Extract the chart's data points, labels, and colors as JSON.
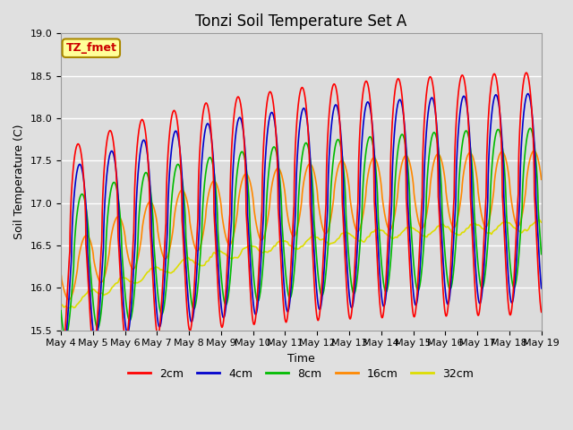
{
  "title": "Tonzi Soil Temperature Set A",
  "xlabel": "Time",
  "ylabel": "Soil Temperature (C)",
  "annotation": "TZ_fmet",
  "ylim": [
    15.5,
    19.0
  ],
  "yticks": [
    15.5,
    16.0,
    16.5,
    17.0,
    17.5,
    18.0,
    18.5,
    19.0
  ],
  "xtick_labels": [
    "May 4",
    "May 5",
    "May 6",
    "May 7",
    "May 8",
    "May 9",
    "May 10",
    "May 11",
    "May 12",
    "May 13",
    "May 14",
    "May 15",
    "May 16",
    "May 17",
    "May 18",
    "May 19"
  ],
  "line_colors": {
    "2cm": "#ff0000",
    "4cm": "#0000cc",
    "8cm": "#00bb00",
    "16cm": "#ff8800",
    "32cm": "#dddd00"
  },
  "legend_labels": [
    "2cm",
    "4cm",
    "8cm",
    "16cm",
    "32cm"
  ],
  "background_color": "#e0e0e0",
  "plot_bg_color": "#dcdcdc",
  "grid_color": "#ffffff",
  "annotation_bg": "#ffff99",
  "annotation_border": "#aa8800",
  "title_fontsize": 12,
  "axis_label_fontsize": 9,
  "tick_fontsize": 8,
  "legend_fontsize": 9
}
